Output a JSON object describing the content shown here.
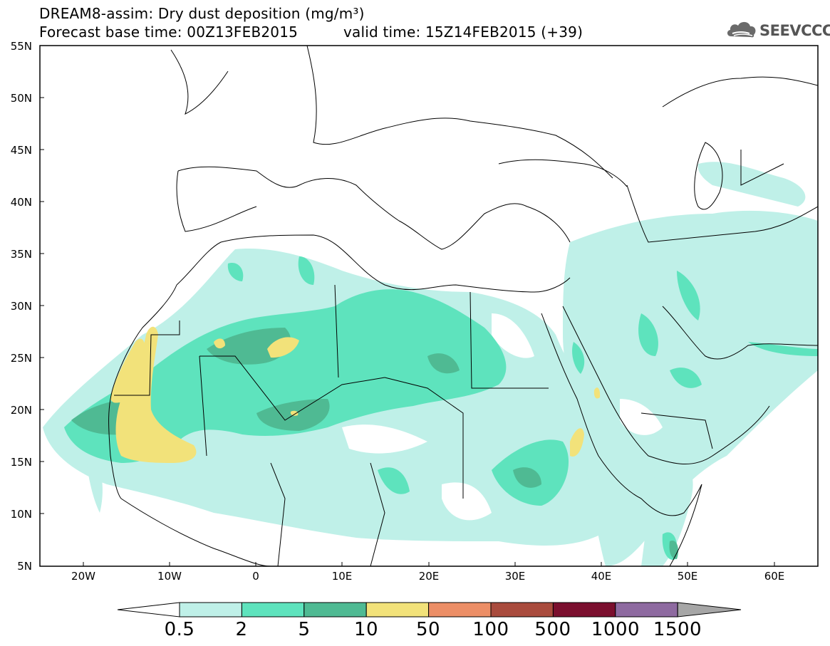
{
  "title": {
    "line1": "DREAM8-assim: Dry dust deposition (mg/m³)",
    "line2_left": "Forecast base time: 00Z13FEB2015",
    "line2_right": "valid time: 15Z14FEB2015 (+39)"
  },
  "logo": {
    "text": "SEEVCCC",
    "icon": "cloud-icon"
  },
  "axes": {
    "lat_ticks": [
      "55N",
      "50N",
      "45N",
      "40N",
      "35N",
      "30N",
      "25N",
      "20N",
      "15N",
      "10N",
      "5N"
    ],
    "lon_ticks": [
      "20W",
      "10W",
      "0",
      "10E",
      "20E",
      "30E",
      "40E",
      "50E",
      "60E"
    ],
    "lon_range": [
      -25,
      65
    ],
    "lat_range": [
      5,
      55
    ]
  },
  "colorbar": {
    "labels": [
      "0.5",
      "2",
      "5",
      "10",
      "50",
      "100",
      "500",
      "1000",
      "1500"
    ],
    "colors": [
      "#bff0e8",
      "#5ee3bd",
      "#4fba93",
      "#f2e27a",
      "#ec8e66",
      "#a94b3d",
      "#7b0f2e",
      "#8e6aa0"
    ],
    "under_color": "#ffffff",
    "over_color": "#a6a6a6"
  }
}
